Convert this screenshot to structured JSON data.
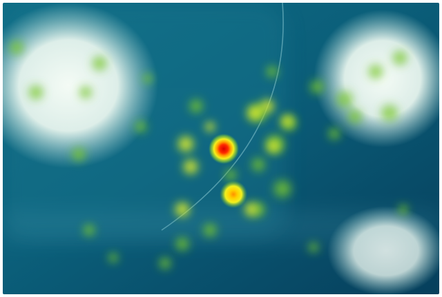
{
  "image": {
    "kind": "heatmap-overlay-photo",
    "colors": {
      "background_teal": "#0b5f7a",
      "background_dark": "#063a55",
      "glow_white": "#eef8f2",
      "heat_green": "#7ed321",
      "heat_yellow": "#f5ef1c",
      "heat_orange": "#ff8a00",
      "heat_red": "#e00000"
    }
  }
}
